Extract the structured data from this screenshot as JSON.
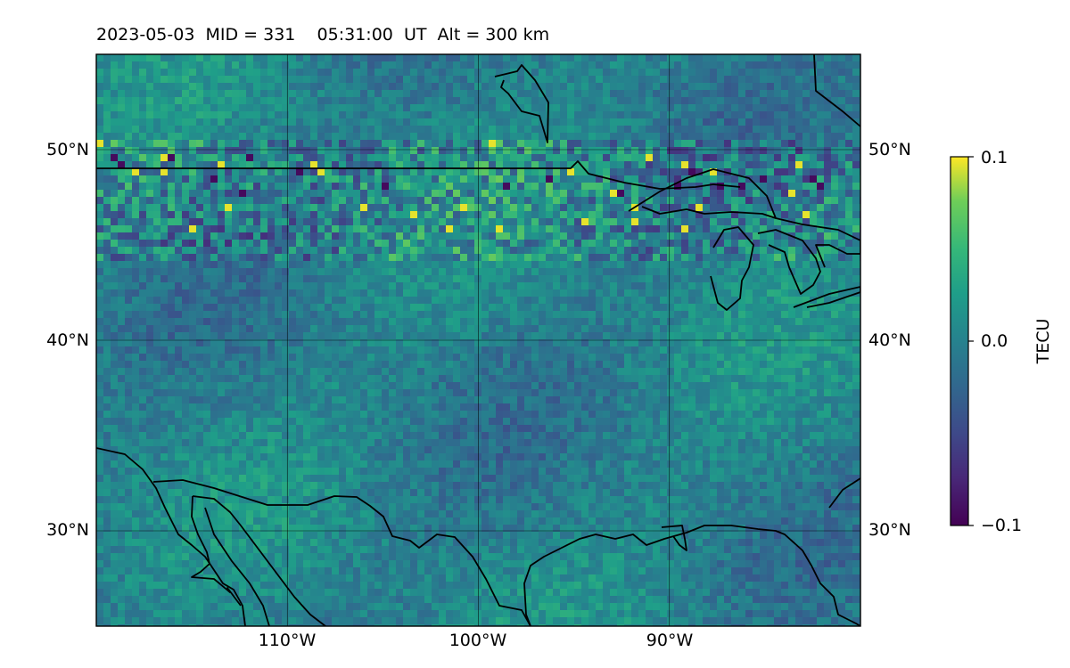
{
  "title": "2023-05-03  MID = 331    05:31:00  UT  Alt = 300 km",
  "map": {
    "lon_range": [
      -120,
      -80
    ],
    "lat_range": [
      25,
      55
    ],
    "grid_lons": [
      -110,
      -100,
      -90
    ],
    "grid_lats": [
      30,
      40,
      50
    ],
    "lat_labels_left": [
      "30°N",
      "40°N",
      "50°N"
    ],
    "lat_labels_right": [
      "30°N",
      "40°N",
      "50°N"
    ],
    "lon_labels": [
      "110°W",
      "100°W",
      "90°W"
    ],
    "colormap": "viridis",
    "background_color": "#2a8c8a"
  },
  "colorbar": {
    "label": "TECU",
    "min": -0.1,
    "max": 0.1,
    "ticks": [
      0.1,
      0.0,
      -0.1
    ],
    "tick_labels": [
      "0.1",
      "0.0",
      "−0.1"
    ]
  }
}
